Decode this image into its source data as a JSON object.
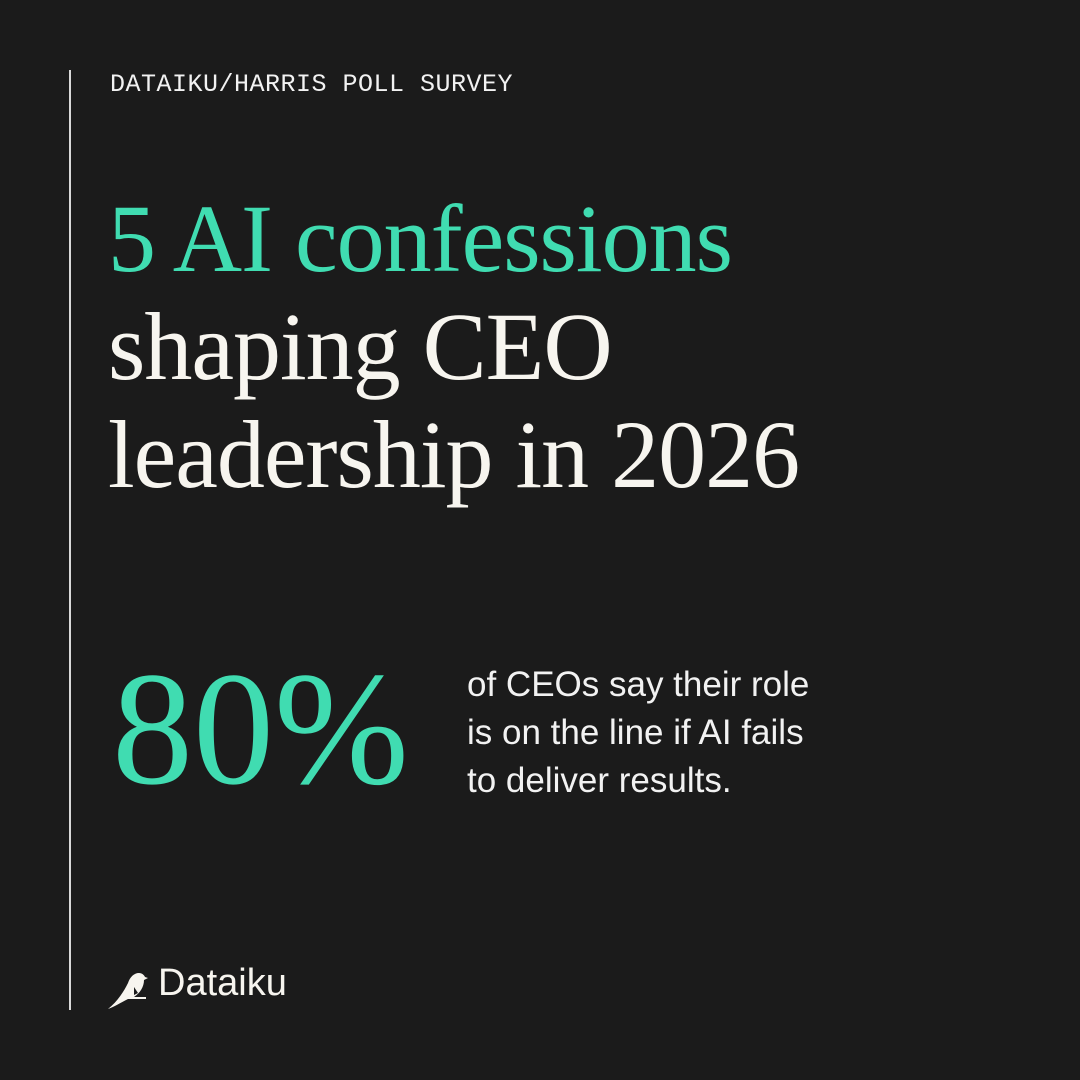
{
  "eyebrow": "DATAIKU/HARRIS POLL SURVEY",
  "headline": {
    "highlight": "5 AI confessions",
    "lines": [
      "shaping CEO",
      "leadership in 2026"
    ]
  },
  "stat": {
    "value": "80%",
    "description": [
      "of CEOs say their role",
      "is on the line if AI fails",
      "to deliver results."
    ]
  },
  "brand": "Dataiku"
}
